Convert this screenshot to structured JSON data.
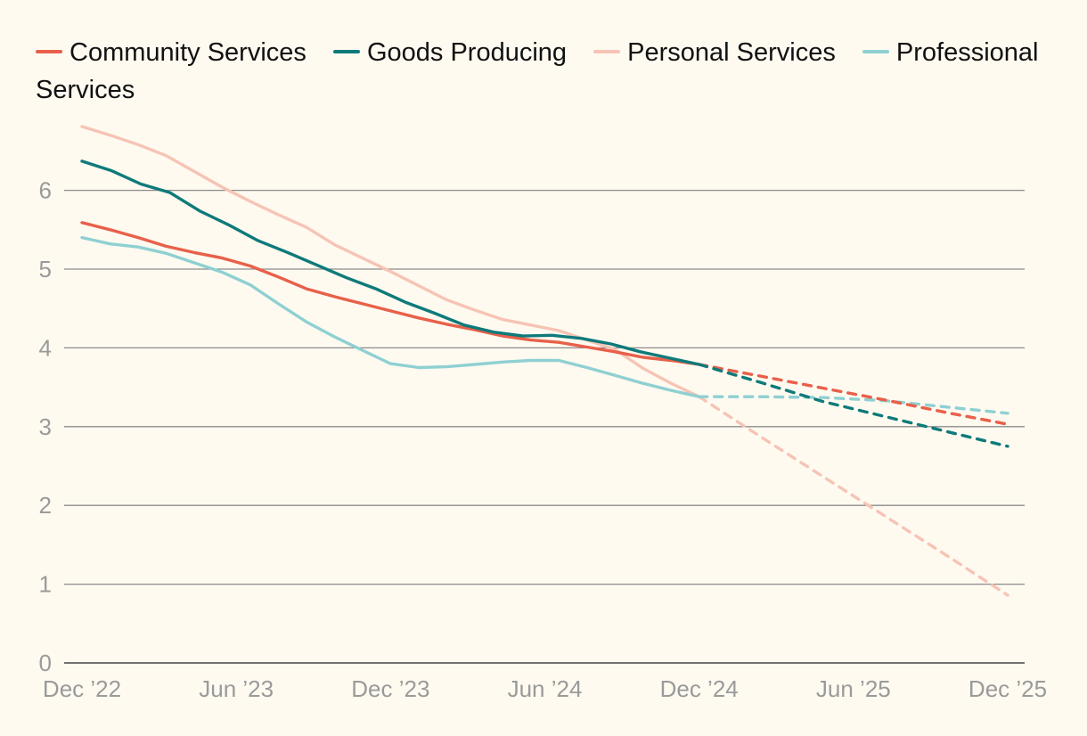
{
  "chart_data": {
    "type": "line",
    "title": "",
    "xlabel": "",
    "ylabel": "",
    "ylim": [
      0,
      6.8
    ],
    "yticks": [
      0,
      1,
      2,
      3,
      4,
      5,
      6
    ],
    "x_tick_labels": [
      "Dec ’22",
      "Jun ’23",
      "Dec ’23",
      "Jun ’24",
      "Dec ’24",
      "Jun ’25",
      "Dec ’25"
    ],
    "x_months": [
      0,
      36
    ],
    "grid": true,
    "legend_position": "top-left",
    "series": [
      {
        "name": "Community Services",
        "color": "#e8604a",
        "actual": [
          5.59,
          5.5,
          5.4,
          5.29,
          5.21,
          5.14,
          5.04,
          4.9,
          4.75,
          4.65,
          4.56,
          4.47,
          4.38,
          4.3,
          4.23,
          4.15,
          4.1,
          4.07,
          4.01,
          3.95,
          3.88,
          3.84,
          3.79
        ],
        "forecast": [
          3.79,
          3.64,
          3.49,
          3.34,
          3.18,
          3.03
        ]
      },
      {
        "name": "Goods Producing",
        "color": "#0e7a7a",
        "actual": [
          6.37,
          6.25,
          6.08,
          5.97,
          5.74,
          5.56,
          5.36,
          5.21,
          5.05,
          4.89,
          4.75,
          4.58,
          4.44,
          4.29,
          4.2,
          4.15,
          4.16,
          4.12,
          4.05,
          3.95,
          3.87,
          3.79
        ],
        "forecast": [
          3.79,
          3.56,
          3.32,
          3.13,
          2.94,
          2.75
        ]
      },
      {
        "name": "Personal Services",
        "color": "#f6c4b5",
        "actual": [
          6.81,
          6.7,
          6.58,
          6.44,
          6.24,
          6.04,
          5.86,
          5.69,
          5.53,
          5.31,
          5.14,
          4.97,
          4.79,
          4.61,
          4.48,
          4.36,
          4.29,
          4.22,
          4.1,
          3.98,
          3.74,
          3.55,
          3.38
        ],
        "forecast": [
          3.38,
          2.87,
          2.37,
          1.87,
          1.37,
          0.86
        ]
      },
      {
        "name": "Professional Services",
        "color": "#8fd0d2",
        "actual": [
          5.4,
          5.32,
          5.28,
          5.2,
          5.08,
          4.96,
          4.8,
          4.56,
          4.33,
          4.14,
          3.97,
          3.8,
          3.75,
          3.76,
          3.79,
          3.82,
          3.84,
          3.84,
          3.75,
          3.65,
          3.55,
          3.46,
          3.38
        ],
        "forecast": [
          3.38,
          3.38,
          3.37,
          3.33,
          3.25,
          3.17
        ]
      }
    ]
  }
}
